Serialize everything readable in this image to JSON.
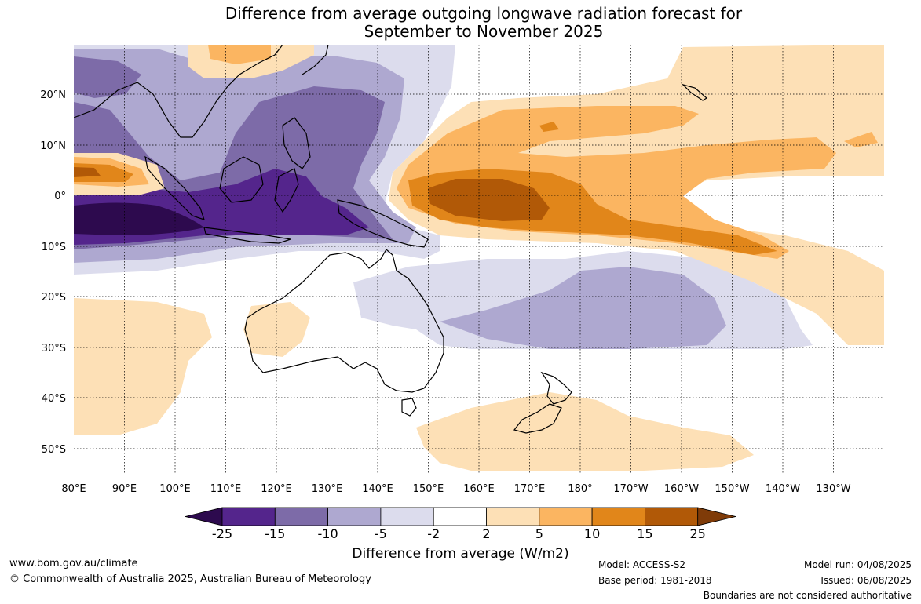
{
  "title": {
    "line1": "Difference from average outgoing longwave radiation forecast for",
    "line2": "September to November 2025"
  },
  "axes": {
    "lat_labels": [
      "20°N",
      "10°N",
      "0°",
      "10°S",
      "20°S",
      "30°S",
      "40°S",
      "50°S"
    ],
    "lon_labels": [
      "80°E",
      "90°E",
      "100°E",
      "110°E",
      "120°E",
      "130°E",
      "140°E",
      "150°E",
      "160°E",
      "170°E",
      "180°",
      "170°W",
      "160°W",
      "150°W",
      "140°W",
      "130°W"
    ],
    "lon_range": [
      80,
      240
    ],
    "lat_range": [
      -55,
      30
    ]
  },
  "colorbar": {
    "labels": [
      "-25",
      "-15",
      "-10",
      "-5",
      "-2",
      "2",
      "5",
      "10",
      "15",
      "25"
    ],
    "colors": [
      "#2d0a4e",
      "#54258c",
      "#7d6ba8",
      "#aea8d0",
      "#dcdced",
      "#ffffff",
      "#fde0b6",
      "#fbb561",
      "#e1861a",
      "#b15907",
      "#7f3b08"
    ],
    "title": "Difference from average (W/m2)"
  },
  "footer": {
    "website": "www.bom.gov.au/climate",
    "copyright": "© Commonwealth of Australia 2025, Australian Bureau of Meteorology",
    "model": "Model: ACCESS-S2",
    "base_period": "Base period: 1981-2018",
    "model_run": "Model run: 04/08/2025",
    "issued": "Issued: 06/08/2025",
    "disclaimer": "Boundaries are not considered authoritative"
  }
}
